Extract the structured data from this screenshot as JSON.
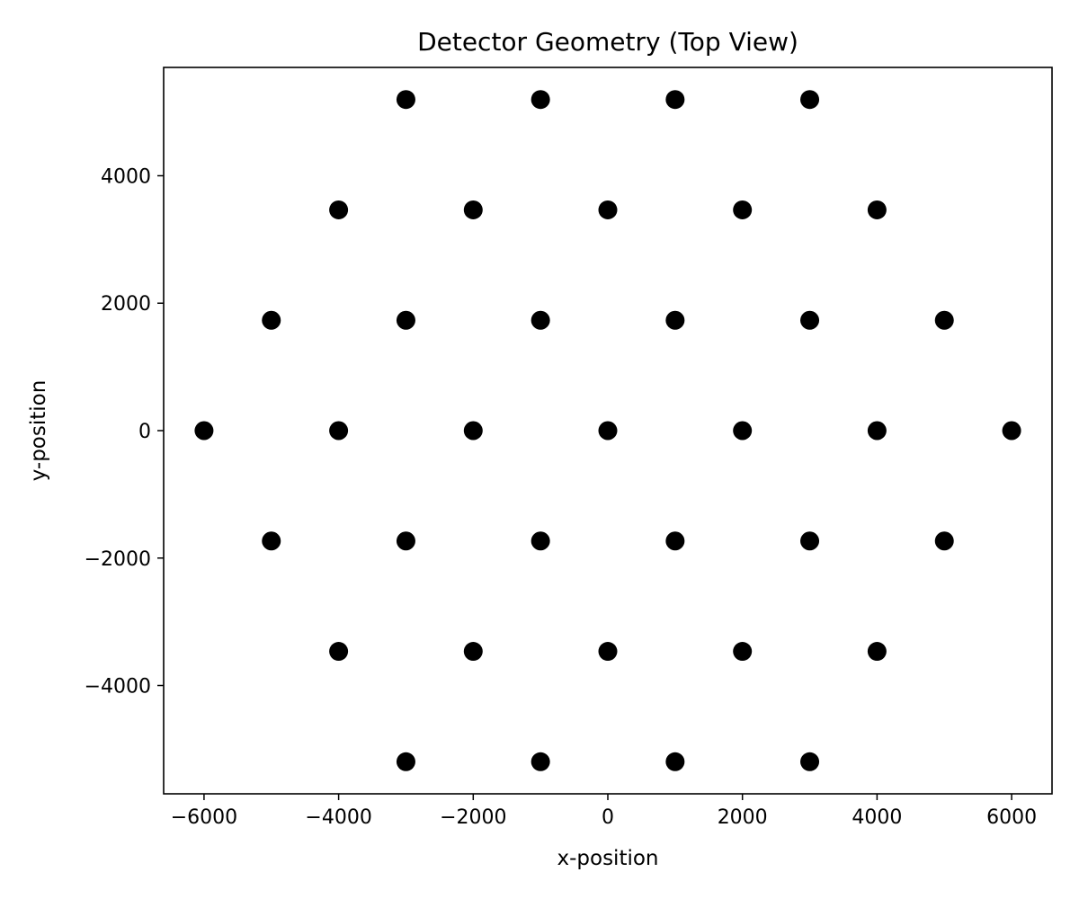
{
  "chart_data": {
    "type": "scatter",
    "title": "Detector Geometry (Top View)",
    "xlabel": "x-position",
    "ylabel": "y-position",
    "xlim": [
      -6600,
      6600
    ],
    "ylim": [
      -5700,
      5700
    ],
    "xticks": [
      -6000,
      -4000,
      -2000,
      0,
      2000,
      4000,
      6000
    ],
    "yticks": [
      -4000,
      -2000,
      0,
      2000,
      4000
    ],
    "xtick_labels": [
      "−6000",
      "−4000",
      "−2000",
      "0",
      "2000",
      "4000",
      "6000"
    ],
    "ytick_labels": [
      "−4000",
      "−2000",
      "0",
      "2000",
      "4000"
    ],
    "grid": false,
    "legend": "none",
    "marker_color": "#000000",
    "points": [
      {
        "x": -3000,
        "y": 5196
      },
      {
        "x": -1000,
        "y": 5196
      },
      {
        "x": 1000,
        "y": 5196
      },
      {
        "x": 3000,
        "y": 5196
      },
      {
        "x": -4000,
        "y": 3464
      },
      {
        "x": -2000,
        "y": 3464
      },
      {
        "x": 0,
        "y": 3464
      },
      {
        "x": 2000,
        "y": 3464
      },
      {
        "x": 4000,
        "y": 3464
      },
      {
        "x": -5000,
        "y": 1732
      },
      {
        "x": -3000,
        "y": 1732
      },
      {
        "x": -1000,
        "y": 1732
      },
      {
        "x": 1000,
        "y": 1732
      },
      {
        "x": 3000,
        "y": 1732
      },
      {
        "x": 5000,
        "y": 1732
      },
      {
        "x": -6000,
        "y": 0
      },
      {
        "x": -4000,
        "y": 0
      },
      {
        "x": -2000,
        "y": 0
      },
      {
        "x": 0,
        "y": 0
      },
      {
        "x": 2000,
        "y": 0
      },
      {
        "x": 4000,
        "y": 0
      },
      {
        "x": 6000,
        "y": 0
      },
      {
        "x": -5000,
        "y": -1732
      },
      {
        "x": -3000,
        "y": -1732
      },
      {
        "x": -1000,
        "y": -1732
      },
      {
        "x": 1000,
        "y": -1732
      },
      {
        "x": 3000,
        "y": -1732
      },
      {
        "x": 5000,
        "y": -1732
      },
      {
        "x": -4000,
        "y": -3464
      },
      {
        "x": -2000,
        "y": -3464
      },
      {
        "x": 0,
        "y": -3464
      },
      {
        "x": 2000,
        "y": -3464
      },
      {
        "x": 4000,
        "y": -3464
      },
      {
        "x": -3000,
        "y": -5196
      },
      {
        "x": -1000,
        "y": -5196
      },
      {
        "x": 1000,
        "y": -5196
      },
      {
        "x": 3000,
        "y": -5196
      }
    ]
  }
}
